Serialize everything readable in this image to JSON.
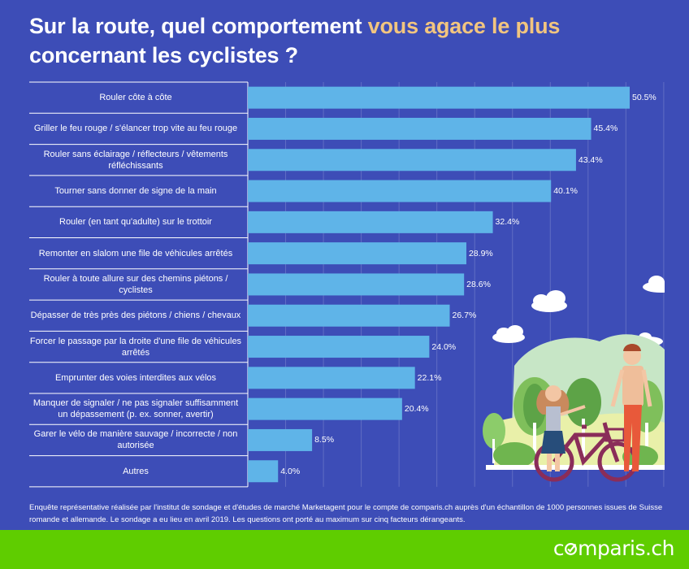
{
  "title": {
    "part1": "Sur la route, quel comportement ",
    "highlight": "vous agace le plus",
    "part2": "concernant les cyclistes ?"
  },
  "chart_data": {
    "type": "bar",
    "orientation": "horizontal",
    "categories": [
      "Rouler côte à côte",
      "Griller le feu rouge / s'élancer trop vite au feu rouge",
      "Rouler sans éclairage / réflecteurs / vêtements réfléchissants",
      "Tourner sans donner de signe de la main",
      "Rouler (en tant qu'adulte) sur le trottoir",
      "Remonter en slalom une file de véhicules arrêtés",
      "Rouler à toute allure sur des chemins piétons / cyclistes",
      "Dépasser de très près des piétons / chiens / chevaux",
      "Forcer le passage par la droite d'une file de véhicules arrêtés",
      "Emprunter des voies interdites aux vélos",
      "Manquer de signaler / ne pas signaler suffisamment un dépassement (p. ex. sonner, avertir)",
      "Garer le vélo de manière sauvage / incorrecte / non autorisée",
      "Autres"
    ],
    "values": [
      50.5,
      45.4,
      43.4,
      40.1,
      32.4,
      28.9,
      28.6,
      26.7,
      24.0,
      22.1,
      20.4,
      8.5,
      4.0
    ],
    "value_labels": [
      "50.5%",
      "45.4%",
      "43.4%",
      "40.1%",
      "32.4%",
      "28.9%",
      "28.6%",
      "26.7%",
      "24.0%",
      "22.1%",
      "20.4%",
      "8.5%",
      "4.0%"
    ],
    "xlim": [
      0,
      60
    ],
    "grid": true,
    "bar_color": "#5fb4e8"
  },
  "footnote": "Enquête représentative réalisée par l'institut de sondage et d'études de marché Marketagent pour le compte de comparis.ch auprès d'un échantillon de 1000 personnes issues de Suisse romande et allemande. Le sondage a eu lieu en avril 2019. Les questions ont porté au maximum sur cinq facteurs dérangeants.",
  "logo": {
    "before": "c",
    "after": "mparis.ch"
  },
  "colors": {
    "background": "#3d4db7",
    "highlight": "#f2c57f",
    "footer": "#5fcd00"
  }
}
